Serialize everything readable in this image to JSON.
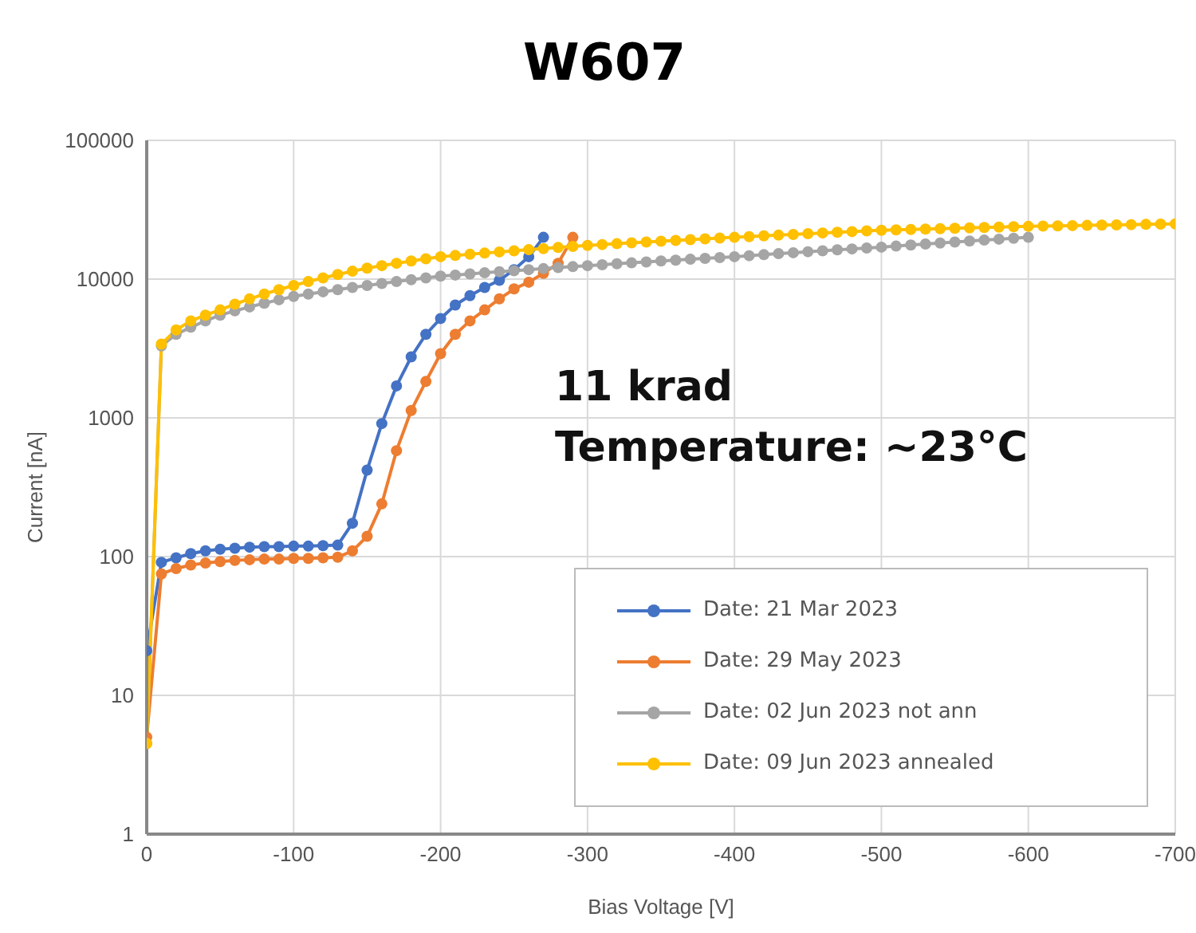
{
  "chart_data": {
    "type": "line",
    "title": "W607",
    "xlabel": "Bias Voltage [V]",
    "ylabel": "Current [nA]",
    "annotations": [
      "11 krad",
      "Temperature: ~23°C"
    ],
    "x": [
      0,
      -10,
      -20,
      -30,
      -40,
      -50,
      -60,
      -70,
      -80,
      -90,
      -100,
      -110,
      -120,
      -130,
      -140,
      -150,
      -160,
      -170,
      -180,
      -190,
      -200,
      -210,
      -220,
      -230,
      -240,
      -250,
      -260,
      -270,
      -280,
      -290,
      -300,
      -310,
      -320,
      -330,
      -340,
      -350,
      -360,
      -370,
      -380,
      -390,
      -400,
      -410,
      -420,
      -430,
      -440,
      -450,
      -460,
      -470,
      -480,
      -490,
      -500,
      -510,
      -520,
      -530,
      -540,
      -550,
      -560,
      -570,
      -580,
      -590,
      -600,
      -610,
      -620,
      -630,
      -640,
      -650,
      -660,
      -670,
      -680,
      -690,
      -700
    ],
    "series": [
      {
        "name": "Date: 21 Mar 2023",
        "color": "#4472c4",
        "values": [
          21,
          91,
          98,
          105,
          110,
          113,
          115,
          117,
          118,
          118,
          119,
          119,
          120,
          121,
          174,
          420,
          910,
          1700,
          2750,
          4000,
          5200,
          6500,
          7600,
          8700,
          9800,
          11700,
          14500,
          20000,
          null,
          null,
          null,
          null,
          null,
          null,
          null,
          null,
          null,
          null,
          null,
          null,
          null,
          null,
          null,
          null,
          null,
          null,
          null,
          null,
          null,
          null,
          null,
          null,
          null,
          null,
          null,
          null,
          null,
          null,
          null,
          null,
          null,
          null,
          null,
          null,
          null,
          null,
          null,
          null,
          null,
          null,
          null
        ]
      },
      {
        "name": "Date: 29 May 2023",
        "color": "#ed7d31",
        "values": [
          5,
          75,
          82,
          87,
          90,
          92,
          94,
          95,
          96,
          96,
          97,
          97,
          98,
          99,
          110,
          140,
          240,
          580,
          1130,
          1830,
          2900,
          4000,
          5000,
          6000,
          7200,
          8500,
          9500,
          11000,
          13000,
          20000,
          null,
          null,
          null,
          null,
          null,
          null,
          null,
          null,
          null,
          null,
          null,
          null,
          null,
          null,
          null,
          null,
          null,
          null,
          null,
          null,
          null,
          null,
          null,
          null,
          null,
          null,
          null,
          null,
          null,
          null,
          null,
          null,
          null,
          null,
          null,
          null,
          null,
          null,
          null,
          null,
          null
        ]
      },
      {
        "name": "Date: 02 Jun 2023 not ann",
        "color": "#a5a5a5",
        "values": [
          4.5,
          3300,
          4000,
          4500,
          5000,
          5500,
          5900,
          6300,
          6700,
          7100,
          7500,
          7800,
          8100,
          8400,
          8700,
          9000,
          9300,
          9600,
          9900,
          10200,
          10500,
          10700,
          10900,
          11100,
          11300,
          11500,
          11700,
          11900,
          12100,
          12300,
          12500,
          12700,
          12900,
          13100,
          13300,
          13500,
          13700,
          13900,
          14100,
          14300,
          14500,
          14750,
          15000,
          15250,
          15500,
          15750,
          16000,
          16250,
          16500,
          16750,
          17000,
          17300,
          17600,
          17900,
          18200,
          18500,
          18800,
          19100,
          19400,
          19700,
          20000,
          null,
          null,
          null,
          null,
          null,
          null,
          null,
          null,
          null,
          null
        ]
      },
      {
        "name": "Date: 09 Jun 2023 annealed",
        "color": "#ffc000",
        "values": [
          4.5,
          3400,
          4300,
          5000,
          5500,
          6000,
          6600,
          7200,
          7800,
          8400,
          9000,
          9600,
          10200,
          10800,
          11400,
          12000,
          12500,
          13000,
          13500,
          14000,
          14500,
          14800,
          15100,
          15400,
          15700,
          16000,
          16300,
          16600,
          16900,
          17200,
          17500,
          17750,
          18000,
          18250,
          18500,
          18750,
          19000,
          19250,
          19500,
          19750,
          20000,
          20250,
          20500,
          20750,
          21000,
          21250,
          21500,
          21750,
          22000,
          22250,
          22500,
          22650,
          22800,
          22950,
          23100,
          23250,
          23400,
          23550,
          23700,
          23850,
          24000,
          24100,
          24200,
          24300,
          24400,
          24500,
          24600,
          24700,
          24800,
          24900,
          25000
        ]
      }
    ],
    "xlim": [
      0,
      -700
    ],
    "xticks": [
      0,
      -100,
      -200,
      -300,
      -400,
      -500,
      -600,
      -700
    ],
    "ylim": [
      1,
      100000
    ],
    "yticks": [
      1,
      10,
      100,
      1000,
      10000,
      100000
    ],
    "log": true,
    "grid": true,
    "legend": "bottom right",
    "marker": "circle",
    "line_style": "solid"
  }
}
